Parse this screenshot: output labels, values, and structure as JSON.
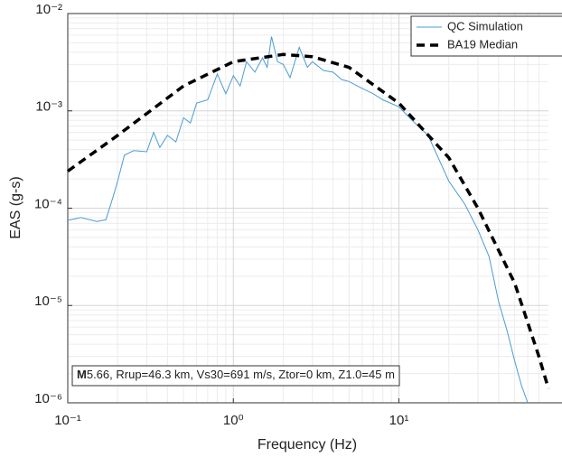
{
  "chart_data": {
    "type": "line",
    "xlabel": "Frequency (Hz)",
    "ylabel": "EAS (g-s)",
    "xscale": "log",
    "yscale": "log",
    "grid": true,
    "legend": "upper right",
    "xlim": [
      0.1,
      80
    ],
    "ylim": [
      1e-06,
      0.01
    ],
    "xticks": [
      {
        "value": 0.1,
        "label": "10⁻¹"
      },
      {
        "value": 1,
        "label": "10⁰"
      },
      {
        "value": 10,
        "label": "10¹"
      }
    ],
    "yticks": [
      {
        "value": 1e-06,
        "label": "10⁻⁶"
      },
      {
        "value": 1e-05,
        "label": "10⁻⁵"
      },
      {
        "value": 0.0001,
        "label": "10⁻⁴"
      },
      {
        "value": 0.001,
        "label": "10⁻³"
      },
      {
        "value": 0.01,
        "label": "10⁻²"
      }
    ],
    "annotation": {
      "magnitude_symbol": "M",
      "text": "5.66, Rrup=46.3 km, Vs30=691 m/s, Ztor=0 km, Z1.0=45 m"
    },
    "series": [
      {
        "name": "QC Simulation",
        "color": "#4a9cd2",
        "style": "solid",
        "x": [
          0.1,
          0.12,
          0.15,
          0.17,
          0.19,
          0.2,
          0.22,
          0.25,
          0.3,
          0.33,
          0.36,
          0.4,
          0.45,
          0.5,
          0.55,
          0.6,
          0.7,
          0.8,
          0.9,
          1.0,
          1.1,
          1.2,
          1.35,
          1.5,
          1.6,
          1.7,
          1.85,
          2.0,
          2.2,
          2.5,
          2.8,
          3.0,
          3.5,
          4.0,
          4.5,
          5.0,
          6.0,
          7.0,
          8.0,
          10,
          12,
          15,
          20,
          25,
          30,
          35,
          40,
          45,
          50,
          55,
          60
        ],
        "values": [
          7.5e-05,
          8e-05,
          7.3e-05,
          7.6e-05,
          0.00014,
          0.00019,
          0.00035,
          0.00039,
          0.00038,
          0.0006,
          0.00042,
          0.00056,
          0.00048,
          0.00085,
          0.00075,
          0.0012,
          0.0013,
          0.0024,
          0.0015,
          0.0023,
          0.0018,
          0.0032,
          0.0025,
          0.0035,
          0.0028,
          0.0058,
          0.0032,
          0.003,
          0.0022,
          0.0045,
          0.0028,
          0.0032,
          0.0026,
          0.0025,
          0.0021,
          0.002,
          0.0017,
          0.0015,
          0.0013,
          0.0011,
          0.0008,
          0.00056,
          0.00019,
          0.00011,
          6e-05,
          3.2e-05,
          1.1e-05,
          5.5e-06,
          2.7e-06,
          1.5e-06,
          1e-06
        ]
      },
      {
        "name": "BA19 Median",
        "color": "#000000",
        "style": "dashed",
        "x": [
          0.1,
          0.2,
          0.5,
          1,
          2,
          3,
          5,
          10,
          20,
          30,
          50,
          70,
          80
        ],
        "values": [
          0.00024,
          0.00056,
          0.0018,
          0.0032,
          0.0038,
          0.0036,
          0.0028,
          0.0012,
          0.00033,
          0.0001,
          1.7e-05,
          3e-06,
          1.4e-06
        ]
      }
    ]
  }
}
